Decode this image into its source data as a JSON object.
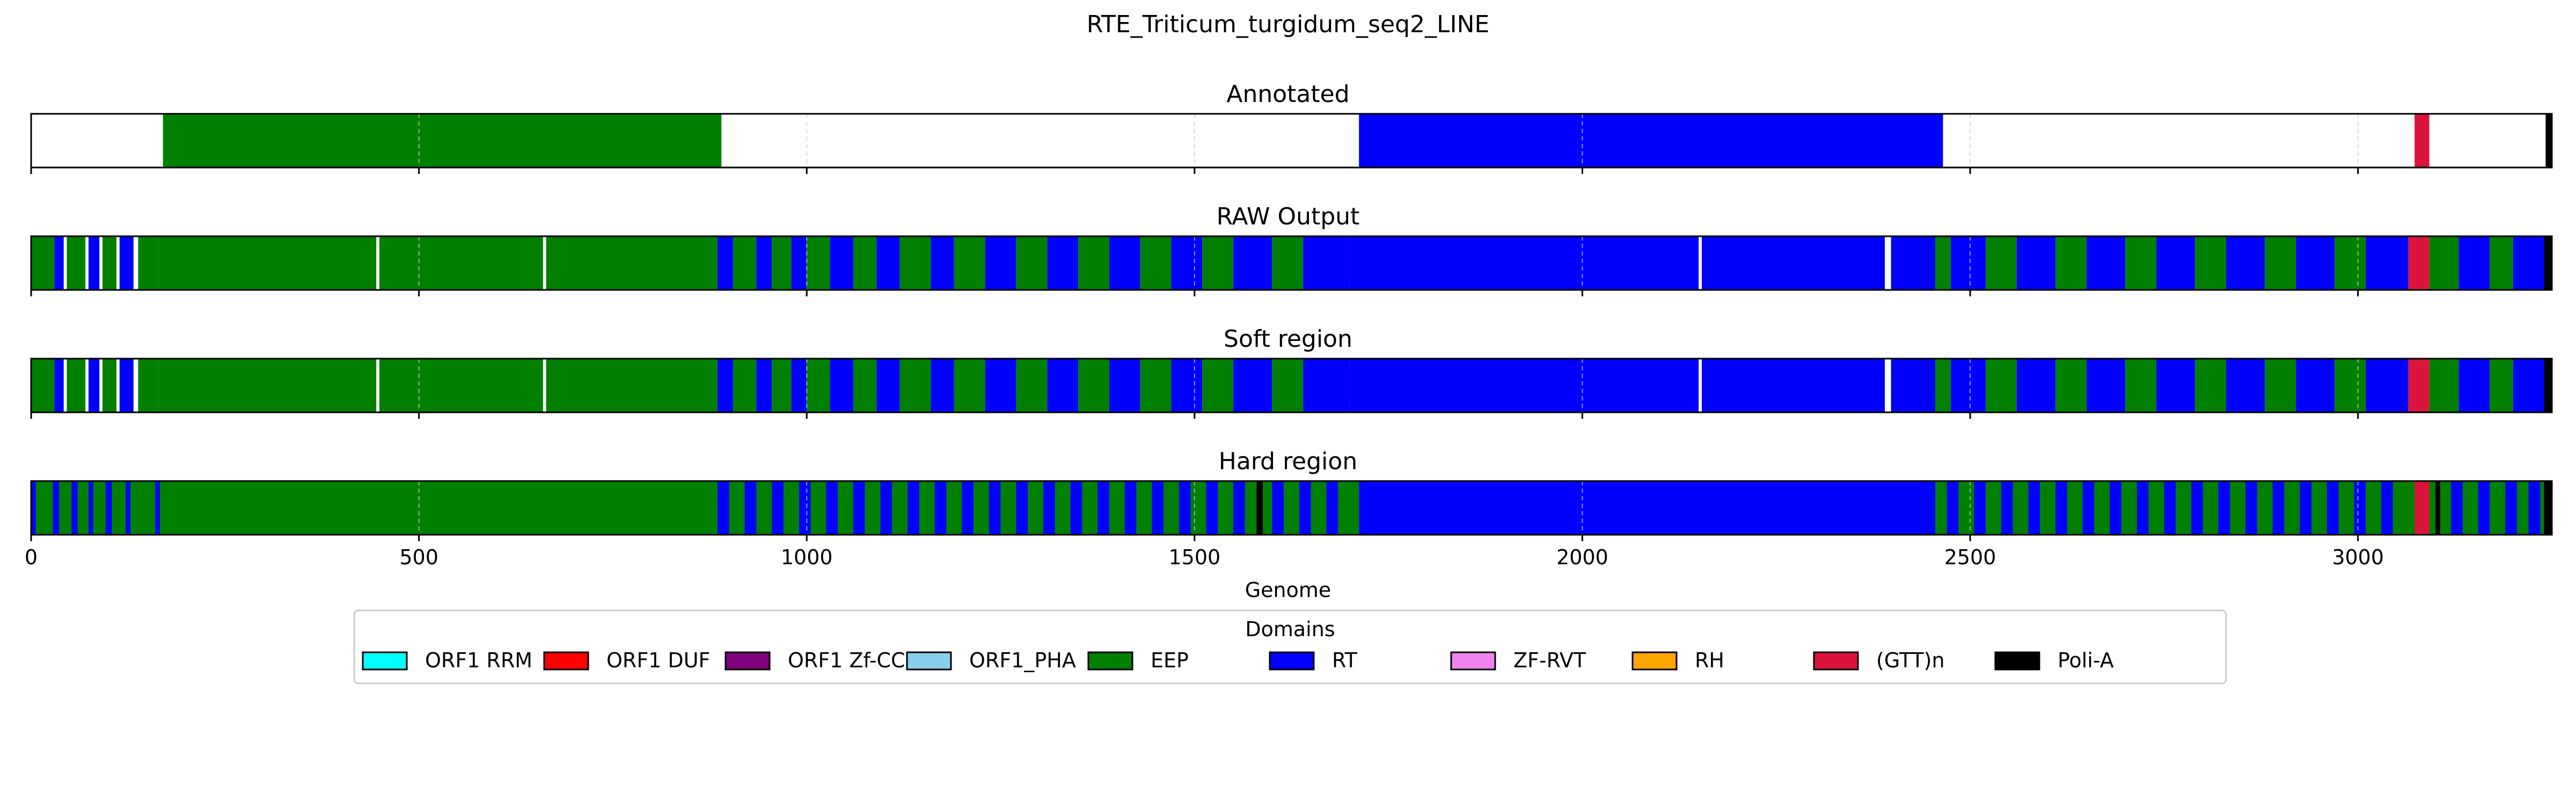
{
  "chart_data": {
    "type": "bar",
    "title": "RTE_Triticum_turgidum_seq2_LINE",
    "xlabel": "Genome",
    "xlim": [
      0,
      3250
    ],
    "xticks": [
      0,
      500,
      1000,
      1500,
      2000,
      2500,
      3000
    ],
    "legend_title": "Domains",
    "legend_position": "bottom-center",
    "domains": [
      {
        "name": "ORF1 RRM",
        "color": "#00ffff"
      },
      {
        "name": "ORF1 DUF",
        "color": "#ff0000"
      },
      {
        "name": "ORF1 Zf-CCHC",
        "color": "#800080"
      },
      {
        "name": "ORF1_PHA",
        "color": "#87ceeb"
      },
      {
        "name": "EEP",
        "color": "#008000"
      },
      {
        "name": "RT",
        "color": "#0000ff"
      },
      {
        "name": "ZF-RVT",
        "color": "#ee82ee"
      },
      {
        "name": "RH",
        "color": "#ffa500"
      },
      {
        "name": "(GTT)n",
        "color": "#dc143c"
      },
      {
        "name": "Poli-A",
        "color": "#000000"
      }
    ],
    "tracks": [
      {
        "name": "Annotated",
        "background": "#ffffff",
        "segments": [
          {
            "start": 170,
            "end": 890,
            "domain": "EEP"
          },
          {
            "start": 1712,
            "end": 2465,
            "domain": "RT"
          },
          {
            "start": 3073,
            "end": 3092,
            "domain": "(GTT)n"
          },
          {
            "start": 3242,
            "end": 3250,
            "domain": "Poli-A"
          }
        ]
      },
      {
        "name": "RAW Output",
        "background": "#ffffff",
        "segments": [
          {
            "start": 0,
            "end": 30,
            "domain": "EEP"
          },
          {
            "start": 30,
            "end": 42,
            "domain": "RT"
          },
          {
            "start": 46,
            "end": 70,
            "domain": "EEP"
          },
          {
            "start": 74,
            "end": 88,
            "domain": "RT"
          },
          {
            "start": 92,
            "end": 110,
            "domain": "EEP"
          },
          {
            "start": 114,
            "end": 132,
            "domain": "RT"
          },
          {
            "start": 138,
            "end": 165,
            "domain": "EEP"
          },
          {
            "start": 165,
            "end": 445,
            "domain": "EEP"
          },
          {
            "start": 449,
            "end": 660,
            "domain": "EEP"
          },
          {
            "start": 664,
            "end": 885,
            "domain": "EEP"
          },
          {
            "start": 885,
            "end": 905,
            "domain": "RT"
          },
          {
            "start": 905,
            "end": 935,
            "domain": "EEP"
          },
          {
            "start": 935,
            "end": 955,
            "domain": "RT"
          },
          {
            "start": 955,
            "end": 980,
            "domain": "EEP"
          },
          {
            "start": 980,
            "end": 1000,
            "domain": "RT"
          },
          {
            "start": 1000,
            "end": 1030,
            "domain": "EEP"
          },
          {
            "start": 1030,
            "end": 1060,
            "domain": "RT"
          },
          {
            "start": 1060,
            "end": 1090,
            "domain": "EEP"
          },
          {
            "start": 1090,
            "end": 1120,
            "domain": "RT"
          },
          {
            "start": 1120,
            "end": 1160,
            "domain": "EEP"
          },
          {
            "start": 1160,
            "end": 1190,
            "domain": "RT"
          },
          {
            "start": 1190,
            "end": 1230,
            "domain": "EEP"
          },
          {
            "start": 1230,
            "end": 1270,
            "domain": "RT"
          },
          {
            "start": 1270,
            "end": 1310,
            "domain": "EEP"
          },
          {
            "start": 1310,
            "end": 1350,
            "domain": "RT"
          },
          {
            "start": 1350,
            "end": 1390,
            "domain": "EEP"
          },
          {
            "start": 1390,
            "end": 1430,
            "domain": "RT"
          },
          {
            "start": 1430,
            "end": 1470,
            "domain": "EEP"
          },
          {
            "start": 1470,
            "end": 1510,
            "domain": "RT"
          },
          {
            "start": 1510,
            "end": 1550,
            "domain": "EEP"
          },
          {
            "start": 1550,
            "end": 1600,
            "domain": "RT"
          },
          {
            "start": 1600,
            "end": 1640,
            "domain": "EEP"
          },
          {
            "start": 1640,
            "end": 1700,
            "domain": "RT"
          },
          {
            "start": 1700,
            "end": 2150,
            "domain": "RT"
          },
          {
            "start": 2154,
            "end": 2390,
            "domain": "RT"
          },
          {
            "start": 2398,
            "end": 2455,
            "domain": "RT"
          },
          {
            "start": 2455,
            "end": 2475,
            "domain": "EEP"
          },
          {
            "start": 2475,
            "end": 2520,
            "domain": "RT"
          },
          {
            "start": 2520,
            "end": 2560,
            "domain": "EEP"
          },
          {
            "start": 2560,
            "end": 2610,
            "domain": "RT"
          },
          {
            "start": 2610,
            "end": 2650,
            "domain": "EEP"
          },
          {
            "start": 2650,
            "end": 2700,
            "domain": "RT"
          },
          {
            "start": 2700,
            "end": 2740,
            "domain": "EEP"
          },
          {
            "start": 2740,
            "end": 2790,
            "domain": "RT"
          },
          {
            "start": 2790,
            "end": 2830,
            "domain": "EEP"
          },
          {
            "start": 2830,
            "end": 2880,
            "domain": "RT"
          },
          {
            "start": 2880,
            "end": 2920,
            "domain": "EEP"
          },
          {
            "start": 2920,
            "end": 2970,
            "domain": "RT"
          },
          {
            "start": 2970,
            "end": 3010,
            "domain": "EEP"
          },
          {
            "start": 3010,
            "end": 3065,
            "domain": "RT"
          },
          {
            "start": 3065,
            "end": 3092,
            "domain": "(GTT)n"
          },
          {
            "start": 3092,
            "end": 3130,
            "domain": "EEP"
          },
          {
            "start": 3130,
            "end": 3170,
            "domain": "RT"
          },
          {
            "start": 3170,
            "end": 3200,
            "domain": "EEP"
          },
          {
            "start": 3200,
            "end": 3240,
            "domain": "RT"
          },
          {
            "start": 3240,
            "end": 3250,
            "domain": "Poli-A"
          }
        ]
      },
      {
        "name": "Soft region",
        "background": "#ffffff",
        "segments": [
          {
            "start": 0,
            "end": 30,
            "domain": "EEP"
          },
          {
            "start": 30,
            "end": 42,
            "domain": "RT"
          },
          {
            "start": 46,
            "end": 70,
            "domain": "EEP"
          },
          {
            "start": 74,
            "end": 88,
            "domain": "RT"
          },
          {
            "start": 92,
            "end": 110,
            "domain": "EEP"
          },
          {
            "start": 114,
            "end": 132,
            "domain": "RT"
          },
          {
            "start": 138,
            "end": 165,
            "domain": "EEP"
          },
          {
            "start": 165,
            "end": 445,
            "domain": "EEP"
          },
          {
            "start": 449,
            "end": 660,
            "domain": "EEP"
          },
          {
            "start": 664,
            "end": 885,
            "domain": "EEP"
          },
          {
            "start": 885,
            "end": 905,
            "domain": "RT"
          },
          {
            "start": 905,
            "end": 935,
            "domain": "EEP"
          },
          {
            "start": 935,
            "end": 955,
            "domain": "RT"
          },
          {
            "start": 955,
            "end": 980,
            "domain": "EEP"
          },
          {
            "start": 980,
            "end": 1000,
            "domain": "RT"
          },
          {
            "start": 1000,
            "end": 1030,
            "domain": "EEP"
          },
          {
            "start": 1030,
            "end": 1060,
            "domain": "RT"
          },
          {
            "start": 1060,
            "end": 1090,
            "domain": "EEP"
          },
          {
            "start": 1090,
            "end": 1120,
            "domain": "RT"
          },
          {
            "start": 1120,
            "end": 1160,
            "domain": "EEP"
          },
          {
            "start": 1160,
            "end": 1190,
            "domain": "RT"
          },
          {
            "start": 1190,
            "end": 1230,
            "domain": "EEP"
          },
          {
            "start": 1230,
            "end": 1270,
            "domain": "RT"
          },
          {
            "start": 1270,
            "end": 1310,
            "domain": "EEP"
          },
          {
            "start": 1310,
            "end": 1350,
            "domain": "RT"
          },
          {
            "start": 1350,
            "end": 1390,
            "domain": "EEP"
          },
          {
            "start": 1390,
            "end": 1430,
            "domain": "RT"
          },
          {
            "start": 1430,
            "end": 1470,
            "domain": "EEP"
          },
          {
            "start": 1470,
            "end": 1510,
            "domain": "RT"
          },
          {
            "start": 1510,
            "end": 1550,
            "domain": "EEP"
          },
          {
            "start": 1550,
            "end": 1600,
            "domain": "RT"
          },
          {
            "start": 1600,
            "end": 1640,
            "domain": "EEP"
          },
          {
            "start": 1640,
            "end": 1700,
            "domain": "RT"
          },
          {
            "start": 1700,
            "end": 2150,
            "domain": "RT"
          },
          {
            "start": 2154,
            "end": 2390,
            "domain": "RT"
          },
          {
            "start": 2398,
            "end": 2455,
            "domain": "RT"
          },
          {
            "start": 2455,
            "end": 2475,
            "domain": "EEP"
          },
          {
            "start": 2475,
            "end": 2520,
            "domain": "RT"
          },
          {
            "start": 2520,
            "end": 2560,
            "domain": "EEP"
          },
          {
            "start": 2560,
            "end": 2610,
            "domain": "RT"
          },
          {
            "start": 2610,
            "end": 2650,
            "domain": "EEP"
          },
          {
            "start": 2650,
            "end": 2700,
            "domain": "RT"
          },
          {
            "start": 2700,
            "end": 2740,
            "domain": "EEP"
          },
          {
            "start": 2740,
            "end": 2790,
            "domain": "RT"
          },
          {
            "start": 2790,
            "end": 2830,
            "domain": "EEP"
          },
          {
            "start": 2830,
            "end": 2880,
            "domain": "RT"
          },
          {
            "start": 2880,
            "end": 2920,
            "domain": "EEP"
          },
          {
            "start": 2920,
            "end": 2970,
            "domain": "RT"
          },
          {
            "start": 2970,
            "end": 3010,
            "domain": "EEP"
          },
          {
            "start": 3010,
            "end": 3065,
            "domain": "RT"
          },
          {
            "start": 3065,
            "end": 3092,
            "domain": "(GTT)n"
          },
          {
            "start": 3092,
            "end": 3130,
            "domain": "EEP"
          },
          {
            "start": 3130,
            "end": 3170,
            "domain": "RT"
          },
          {
            "start": 3170,
            "end": 3200,
            "domain": "EEP"
          },
          {
            "start": 3200,
            "end": 3240,
            "domain": "RT"
          },
          {
            "start": 3240,
            "end": 3250,
            "domain": "Poli-A"
          }
        ]
      },
      {
        "name": "Hard region",
        "background": "#008000",
        "segments": [
          {
            "start": 0,
            "end": 6,
            "domain": "RT"
          },
          {
            "start": 28,
            "end": 36,
            "domain": "RT"
          },
          {
            "start": 52,
            "end": 60,
            "domain": "RT"
          },
          {
            "start": 74,
            "end": 80,
            "domain": "RT"
          },
          {
            "start": 96,
            "end": 104,
            "domain": "RT"
          },
          {
            "start": 122,
            "end": 128,
            "domain": "RT"
          },
          {
            "start": 160,
            "end": 166,
            "domain": "RT"
          },
          {
            "start": 885,
            "end": 900,
            "domain": "RT"
          },
          {
            "start": 920,
            "end": 935,
            "domain": "RT"
          },
          {
            "start": 955,
            "end": 970,
            "domain": "RT"
          },
          {
            "start": 990,
            "end": 1005,
            "domain": "RT"
          },
          {
            "start": 1025,
            "end": 1040,
            "domain": "RT"
          },
          {
            "start": 1060,
            "end": 1075,
            "domain": "RT"
          },
          {
            "start": 1095,
            "end": 1110,
            "domain": "RT"
          },
          {
            "start": 1130,
            "end": 1145,
            "domain": "RT"
          },
          {
            "start": 1165,
            "end": 1180,
            "domain": "RT"
          },
          {
            "start": 1200,
            "end": 1215,
            "domain": "RT"
          },
          {
            "start": 1235,
            "end": 1250,
            "domain": "RT"
          },
          {
            "start": 1270,
            "end": 1285,
            "domain": "RT"
          },
          {
            "start": 1305,
            "end": 1320,
            "domain": "RT"
          },
          {
            "start": 1340,
            "end": 1355,
            "domain": "RT"
          },
          {
            "start": 1375,
            "end": 1390,
            "domain": "RT"
          },
          {
            "start": 1410,
            "end": 1425,
            "domain": "RT"
          },
          {
            "start": 1445,
            "end": 1460,
            "domain": "RT"
          },
          {
            "start": 1480,
            "end": 1495,
            "domain": "RT"
          },
          {
            "start": 1515,
            "end": 1530,
            "domain": "RT"
          },
          {
            "start": 1550,
            "end": 1565,
            "domain": "RT"
          },
          {
            "start": 1580,
            "end": 1588,
            "domain": "Poli-A"
          },
          {
            "start": 1600,
            "end": 1615,
            "domain": "RT"
          },
          {
            "start": 1635,
            "end": 1650,
            "domain": "RT"
          },
          {
            "start": 1670,
            "end": 1685,
            "domain": "RT"
          },
          {
            "start": 1712,
            "end": 2455,
            "domain": "RT"
          },
          {
            "start": 2470,
            "end": 2485,
            "domain": "RT"
          },
          {
            "start": 2505,
            "end": 2520,
            "domain": "RT"
          },
          {
            "start": 2540,
            "end": 2555,
            "domain": "RT"
          },
          {
            "start": 2575,
            "end": 2590,
            "domain": "RT"
          },
          {
            "start": 2610,
            "end": 2625,
            "domain": "RT"
          },
          {
            "start": 2645,
            "end": 2660,
            "domain": "RT"
          },
          {
            "start": 2680,
            "end": 2695,
            "domain": "RT"
          },
          {
            "start": 2715,
            "end": 2730,
            "domain": "RT"
          },
          {
            "start": 2750,
            "end": 2765,
            "domain": "RT"
          },
          {
            "start": 2785,
            "end": 2800,
            "domain": "RT"
          },
          {
            "start": 2820,
            "end": 2835,
            "domain": "RT"
          },
          {
            "start": 2855,
            "end": 2870,
            "domain": "RT"
          },
          {
            "start": 2890,
            "end": 2905,
            "domain": "RT"
          },
          {
            "start": 2925,
            "end": 2940,
            "domain": "RT"
          },
          {
            "start": 2960,
            "end": 2975,
            "domain": "RT"
          },
          {
            "start": 2995,
            "end": 3010,
            "domain": "RT"
          },
          {
            "start": 3030,
            "end": 3045,
            "domain": "RT"
          },
          {
            "start": 3073,
            "end": 3092,
            "domain": "(GTT)n"
          },
          {
            "start": 3100,
            "end": 3106,
            "domain": "Poli-A"
          },
          {
            "start": 3120,
            "end": 3135,
            "domain": "RT"
          },
          {
            "start": 3155,
            "end": 3170,
            "domain": "RT"
          },
          {
            "start": 3190,
            "end": 3205,
            "domain": "RT"
          },
          {
            "start": 3220,
            "end": 3235,
            "domain": "RT"
          },
          {
            "start": 3240,
            "end": 3250,
            "domain": "Poli-A"
          }
        ]
      }
    ]
  }
}
